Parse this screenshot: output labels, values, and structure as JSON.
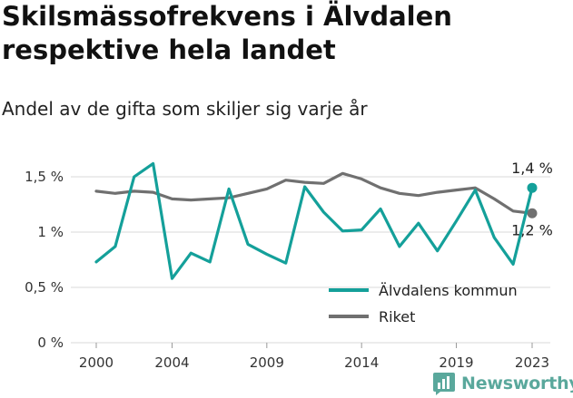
{
  "title": "Skilsmässofrekvens i Älvdalen respektive hela landet",
  "subtitle": "Andel av de gifta som skiljer sig varje år",
  "brand": "Newsworthy",
  "chart_data": {
    "type": "line",
    "x": [
      2000,
      2001,
      2002,
      2003,
      2004,
      2005,
      2006,
      2007,
      2008,
      2009,
      2010,
      2011,
      2012,
      2013,
      2014,
      2015,
      2016,
      2017,
      2018,
      2019,
      2020,
      2021,
      2022,
      2023
    ],
    "x_ticks": [
      2000,
      2004,
      2009,
      2014,
      2019,
      2023
    ],
    "y_ticks": [
      0,
      0.5,
      1,
      1.5
    ],
    "y_tick_labels": [
      "0 %",
      "0,5 %",
      "1 %",
      "1,5 %"
    ],
    "ylim": [
      0,
      1.6
    ],
    "grid": true,
    "legend_position": "bottom-right",
    "series": [
      {
        "name": "Älvdalens kommun",
        "color": "#14a09a",
        "values": [
          0.73,
          0.87,
          1.5,
          1.62,
          0.58,
          0.81,
          0.73,
          1.39,
          0.89,
          0.8,
          0.72,
          1.41,
          1.18,
          1.01,
          1.02,
          1.21,
          0.87,
          1.08,
          0.83,
          1.1,
          1.38,
          0.95,
          0.71,
          1.4
        ],
        "end_label": "1,4 %"
      },
      {
        "name": "Riket",
        "color": "#707070",
        "values": [
          1.37,
          1.35,
          1.37,
          1.36,
          1.3,
          1.29,
          1.3,
          1.31,
          1.35,
          1.39,
          1.47,
          1.45,
          1.44,
          1.53,
          1.48,
          1.4,
          1.35,
          1.33,
          1.36,
          1.38,
          1.4,
          1.3,
          1.19,
          1.17
        ],
        "end_label": "1,2 %"
      }
    ]
  }
}
